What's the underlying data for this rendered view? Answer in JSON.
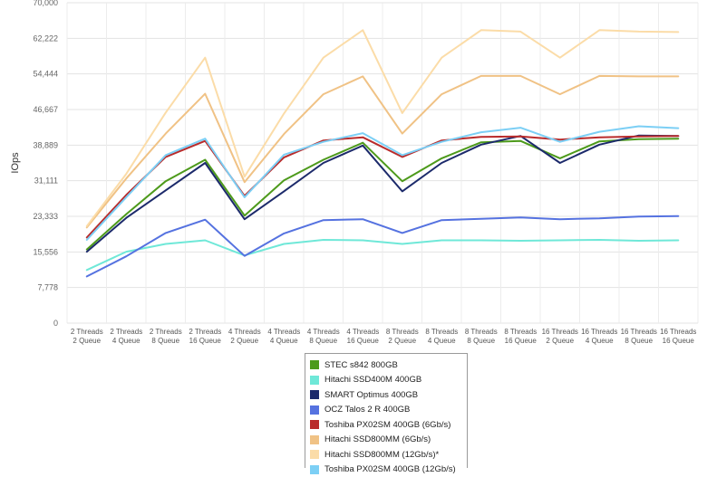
{
  "chart_data": {
    "type": "line",
    "ylabel": "IOps",
    "ylim": [
      0,
      70000
    ],
    "yticks": [
      "0",
      "7,778",
      "15,556",
      "23,333",
      "31,111",
      "38,889",
      "46,667",
      "54,444",
      "62,222",
      "70,000"
    ],
    "ytick_values": [
      0,
      7778,
      15556,
      23333,
      31111,
      38889,
      46667,
      54444,
      62222,
      70000
    ],
    "categories": [
      [
        "2 Threads",
        "2 Queue"
      ],
      [
        "2 Threads",
        "4 Queue"
      ],
      [
        "2 Threads",
        "8 Queue"
      ],
      [
        "2 Threads",
        "16 Queue"
      ],
      [
        "4 Threads",
        "2 Queue"
      ],
      [
        "4 Threads",
        "4 Queue"
      ],
      [
        "4 Threads",
        "8 Queue"
      ],
      [
        "4 Threads",
        "16 Queue"
      ],
      [
        "8 Threads",
        "2 Queue"
      ],
      [
        "8 Threads",
        "4 Queue"
      ],
      [
        "8 Threads",
        "8 Queue"
      ],
      [
        "8 Threads",
        "16 Queue"
      ],
      [
        "16 Threads",
        "2 Queue"
      ],
      [
        "16 Threads",
        "4 Queue"
      ],
      [
        "16 Threads",
        "8 Queue"
      ],
      [
        "16 Threads",
        "16 Queue"
      ]
    ],
    "grid": true,
    "legend_position": "bottom",
    "series": [
      {
        "name": "STEC s842 800GB",
        "color": "#4d9a1b",
        "values": [
          16100,
          23800,
          31000,
          35700,
          23500,
          31200,
          35700,
          39400,
          31000,
          36000,
          39500,
          39800,
          36000,
          39700,
          40200,
          40300
        ]
      },
      {
        "name": "Hitachi SSD400M 400GB",
        "color": "#6fe8d8",
        "values": [
          11600,
          15600,
          17300,
          18100,
          14800,
          17300,
          18200,
          18100,
          17300,
          18100,
          18100,
          18000,
          18100,
          18200,
          18000,
          18100
        ]
      },
      {
        "name": "SMART Optimus 400GB",
        "color": "#1c2a6b",
        "values": [
          15600,
          23000,
          29000,
          35000,
          22700,
          28800,
          35000,
          38800,
          28800,
          35000,
          39000,
          40900,
          35000,
          39000,
          41000,
          40900
        ]
      },
      {
        "name": "OCZ Talos 2 R 400GB",
        "color": "#5572e0",
        "values": [
          10200,
          14600,
          19700,
          22600,
          14700,
          19600,
          22500,
          22700,
          19700,
          22500,
          22800,
          23100,
          22700,
          22900,
          23300,
          23400
        ]
      },
      {
        "name": "Toshiba PX02SM 400GB (6Gb/s)",
        "color": "#b92b2b",
        "values": [
          18700,
          28000,
          36300,
          39800,
          27800,
          36200,
          39900,
          40600,
          36300,
          39900,
          40700,
          40800,
          40100,
          40600,
          40800,
          40900
        ]
      },
      {
        "name": "Hitachi SSD800MM (6Gb/s)",
        "color": "#f0c285",
        "values": [
          20900,
          31600,
          41400,
          50100,
          30800,
          41300,
          50000,
          53900,
          41400,
          50000,
          54000,
          54000,
          50000,
          54000,
          53900,
          53900
        ]
      },
      {
        "name": "Hitachi SSD800MM (12Gb/s)*",
        "color": "#fbdca8",
        "values": [
          21200,
          32600,
          46000,
          58000,
          32000,
          45800,
          58000,
          64000,
          45900,
          58000,
          64000,
          63700,
          58000,
          64000,
          63700,
          63600
        ]
      },
      {
        "name": "Toshiba PX02SM 400GB (12Gb/s)",
        "color": "#7ccff5",
        "values": [
          18200,
          27500,
          36700,
          40300,
          27500,
          36800,
          39600,
          41500,
          36700,
          39600,
          41700,
          42700,
          39600,
          41800,
          43000,
          42600
        ]
      }
    ]
  }
}
